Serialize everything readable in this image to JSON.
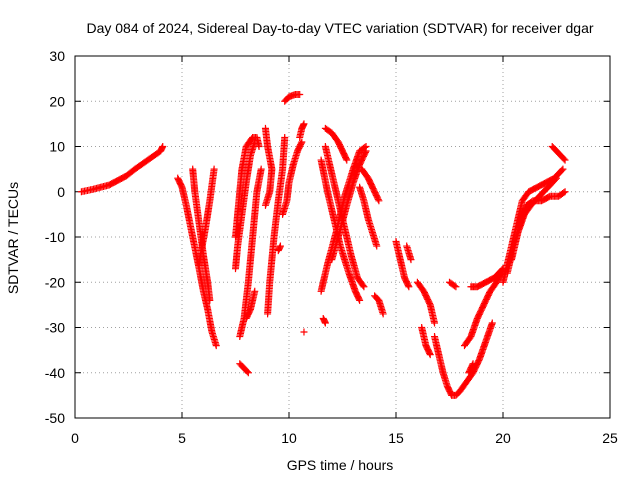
{
  "chart_data": {
    "type": "scatter",
    "title": "Day 084 of 2024, Sidereal Day-to-day VTEC variation (SDTVAR) for receiver dgar",
    "xlabel": "GPS time / hours",
    "ylabel": "SDTVAR / TECUs",
    "xlim": [
      0,
      25
    ],
    "ylim": [
      -50,
      30
    ],
    "xticks": [
      0,
      5,
      10,
      15,
      20,
      25
    ],
    "yticks": [
      -50,
      -40,
      -30,
      -20,
      -10,
      0,
      10,
      20,
      30
    ],
    "grid": true,
    "marker": "plus",
    "color": "#ff0000",
    "series": [
      {
        "points": [
          [
            0.3,
            0
          ],
          [
            0.8,
            0.5
          ],
          [
            1.2,
            1
          ],
          [
            1.6,
            1.5
          ],
          [
            2,
            2.5
          ],
          [
            2.4,
            3.5
          ],
          [
            2.8,
            5
          ],
          [
            3.1,
            6
          ],
          [
            3.4,
            7
          ],
          [
            3.7,
            8
          ],
          [
            4,
            9
          ],
          [
            4.1,
            10
          ]
        ]
      },
      {
        "points": [
          [
            4.8,
            3
          ],
          [
            5,
            1
          ],
          [
            5.2,
            -3
          ],
          [
            5.5,
            -10
          ],
          [
            5.8,
            -17
          ],
          [
            6,
            -22
          ],
          [
            6.2,
            -26
          ],
          [
            6.4,
            -31
          ],
          [
            6.6,
            -34
          ]
        ]
      },
      {
        "points": [
          [
            5.5,
            5
          ],
          [
            5.6,
            0
          ],
          [
            5.8,
            -7
          ],
          [
            6,
            -14
          ],
          [
            6.2,
            -20
          ],
          [
            6.3,
            -24
          ]
        ]
      },
      {
        "points": [
          [
            6.5,
            5
          ],
          [
            6.3,
            -2
          ],
          [
            6.1,
            -8
          ],
          [
            5.9,
            -13
          ],
          [
            5.8,
            -16
          ]
        ]
      },
      {
        "points": [
          [
            7.5,
            -10
          ],
          [
            7.6,
            -5
          ],
          [
            7.7,
            0
          ],
          [
            7.8,
            5
          ],
          [
            8,
            10
          ],
          [
            8.3,
            12
          ],
          [
            8.5,
            12
          ],
          [
            8.6,
            10
          ]
        ]
      },
      {
        "points": [
          [
            7.5,
            -17
          ],
          [
            7.6,
            -12
          ],
          [
            7.8,
            -5
          ],
          [
            8,
            2
          ],
          [
            8.2,
            8
          ],
          [
            8.4,
            11
          ]
        ]
      },
      {
        "points": [
          [
            7.7,
            -32
          ],
          [
            7.9,
            -28
          ],
          [
            8.1,
            -20
          ],
          [
            8.3,
            -10
          ],
          [
            8.5,
            0
          ],
          [
            8.7,
            5
          ]
        ]
      },
      {
        "points": [
          [
            7.7,
            -38
          ],
          [
            7.9,
            -39
          ],
          [
            8.1,
            -40
          ]
        ]
      },
      {
        "points": [
          [
            8.4,
            -22
          ],
          [
            8.2,
            -26
          ],
          [
            8,
            -28
          ]
        ]
      },
      {
        "points": [
          [
            9,
            -27
          ],
          [
            9.1,
            -20
          ],
          [
            9.3,
            -10
          ],
          [
            9.5,
            -2
          ],
          [
            9.7,
            5
          ],
          [
            9.8,
            12
          ]
        ]
      },
      {
        "points": [
          [
            8.9,
            14
          ],
          [
            9,
            10
          ],
          [
            9.2,
            5
          ],
          [
            9.1,
            0
          ],
          [
            8.9,
            -3
          ]
        ]
      },
      {
        "points": [
          [
            9.8,
            20
          ],
          [
            10,
            21
          ],
          [
            10.3,
            21.5
          ],
          [
            10.5,
            21.5
          ]
        ]
      },
      {
        "points": [
          [
            9.7,
            -5
          ],
          [
            9.9,
            -2
          ],
          [
            10,
            2
          ],
          [
            10.2,
            6
          ],
          [
            10.4,
            9
          ],
          [
            10.6,
            11
          ]
        ]
      },
      {
        "points": [
          [
            10.5,
            12
          ],
          [
            10.6,
            14
          ],
          [
            10.7,
            15
          ]
        ]
      },
      {
        "points": [
          [
            9.5,
            -13
          ],
          [
            9.6,
            -12
          ]
        ]
      },
      {
        "points": [
          [
            10.7,
            -31
          ]
        ]
      },
      {
        "points": [
          [
            11.5,
            7
          ],
          [
            11.8,
            0
          ],
          [
            12.1,
            -6
          ],
          [
            12.4,
            -12
          ],
          [
            12.8,
            -18
          ],
          [
            13.1,
            -22
          ],
          [
            13.3,
            -24
          ]
        ]
      },
      {
        "points": [
          [
            11.7,
            10
          ],
          [
            12,
            4
          ],
          [
            12.3,
            -2
          ],
          [
            12.6,
            -8
          ],
          [
            12.9,
            -14
          ],
          [
            13.2,
            -19
          ],
          [
            13.5,
            -21
          ]
        ]
      },
      {
        "points": [
          [
            11.5,
            -22
          ],
          [
            11.8,
            -16
          ],
          [
            12.2,
            -9
          ],
          [
            12.6,
            -1
          ],
          [
            13,
            5
          ],
          [
            13.3,
            9
          ],
          [
            13.6,
            10
          ]
        ]
      },
      {
        "points": [
          [
            12,
            -15
          ],
          [
            12.3,
            -10
          ],
          [
            12.7,
            -3
          ],
          [
            13,
            2
          ],
          [
            13.3,
            6
          ],
          [
            13.6,
            9
          ]
        ]
      },
      {
        "points": [
          [
            11.7,
            14
          ],
          [
            12,
            13
          ],
          [
            12.3,
            11
          ],
          [
            12.5,
            9
          ],
          [
            12.7,
            7
          ]
        ]
      },
      {
        "points": [
          [
            13.3,
            1
          ],
          [
            13.5,
            -2
          ],
          [
            13.7,
            -6
          ],
          [
            13.9,
            -9
          ],
          [
            14.1,
            -12
          ]
        ]
      },
      {
        "points": [
          [
            13.4,
            5
          ],
          [
            13.7,
            3
          ],
          [
            13.9,
            1
          ],
          [
            14.2,
            -2
          ]
        ]
      },
      {
        "points": [
          [
            14,
            -23
          ],
          [
            14.2,
            -24
          ],
          [
            14.4,
            -27
          ]
        ]
      },
      {
        "points": [
          [
            11.6,
            -28
          ],
          [
            11.7,
            -29
          ]
        ]
      },
      {
        "points": [
          [
            15,
            -11
          ],
          [
            15.2,
            -15
          ],
          [
            15.4,
            -19
          ],
          [
            15.6,
            -21
          ]
        ]
      },
      {
        "points": [
          [
            15.5,
            -12
          ],
          [
            15.7,
            -15
          ]
        ]
      },
      {
        "points": [
          [
            16,
            -20
          ],
          [
            16.3,
            -22
          ],
          [
            16.6,
            -25
          ],
          [
            16.8,
            -29
          ]
        ]
      },
      {
        "points": [
          [
            16.2,
            -30
          ],
          [
            16.4,
            -34
          ],
          [
            16.6,
            -36
          ]
        ]
      },
      {
        "points": [
          [
            16.8,
            -32
          ],
          [
            17,
            -36
          ],
          [
            17.2,
            -40
          ],
          [
            17.4,
            -43
          ],
          [
            17.6,
            -45
          ],
          [
            17.8,
            -45
          ],
          [
            18,
            -44
          ],
          [
            18.3,
            -42
          ],
          [
            18.6,
            -40
          ],
          [
            18.9,
            -37
          ],
          [
            19.2,
            -33
          ],
          [
            19.5,
            -29
          ]
        ]
      },
      {
        "points": [
          [
            18.2,
            -34
          ],
          [
            18.5,
            -32
          ],
          [
            18.8,
            -28
          ],
          [
            19.1,
            -25
          ],
          [
            19.4,
            -22
          ],
          [
            19.7,
            -20
          ],
          [
            20,
            -17
          ]
        ]
      },
      {
        "points": [
          [
            18.5,
            -21
          ],
          [
            18.8,
            -21
          ],
          [
            19.2,
            -20
          ],
          [
            19.6,
            -19
          ],
          [
            20,
            -17
          ]
        ]
      },
      {
        "points": [
          [
            17.5,
            -20
          ],
          [
            17.8,
            -21
          ]
        ]
      },
      {
        "points": [
          [
            18.4,
            -40
          ],
          [
            18.6,
            -38
          ]
        ]
      },
      {
        "points": [
          [
            20,
            -20
          ],
          [
            20.3,
            -14
          ],
          [
            20.6,
            -8
          ],
          [
            20.9,
            -2
          ],
          [
            21.2,
            0
          ],
          [
            21.6,
            1
          ],
          [
            22,
            2
          ],
          [
            22.4,
            3
          ],
          [
            22.8,
            5
          ]
        ]
      },
      {
        "points": [
          [
            20.2,
            -18
          ],
          [
            20.5,
            -12
          ],
          [
            20.8,
            -7
          ],
          [
            21.1,
            -3
          ],
          [
            21.4,
            -2
          ],
          [
            21.8,
            -2
          ],
          [
            22.2,
            -1
          ],
          [
            22.6,
            -1
          ],
          [
            22.9,
            0
          ]
        ]
      },
      {
        "points": [
          [
            20.4,
            -15
          ],
          [
            20.7,
            -9
          ],
          [
            21,
            -5
          ],
          [
            21.3,
            -3
          ],
          [
            21.7,
            -1
          ],
          [
            22.1,
            1
          ],
          [
            22.5,
            3
          ]
        ]
      },
      {
        "points": [
          [
            22.3,
            10
          ],
          [
            22.5,
            9
          ],
          [
            22.7,
            8
          ],
          [
            22.9,
            7
          ]
        ]
      }
    ]
  }
}
